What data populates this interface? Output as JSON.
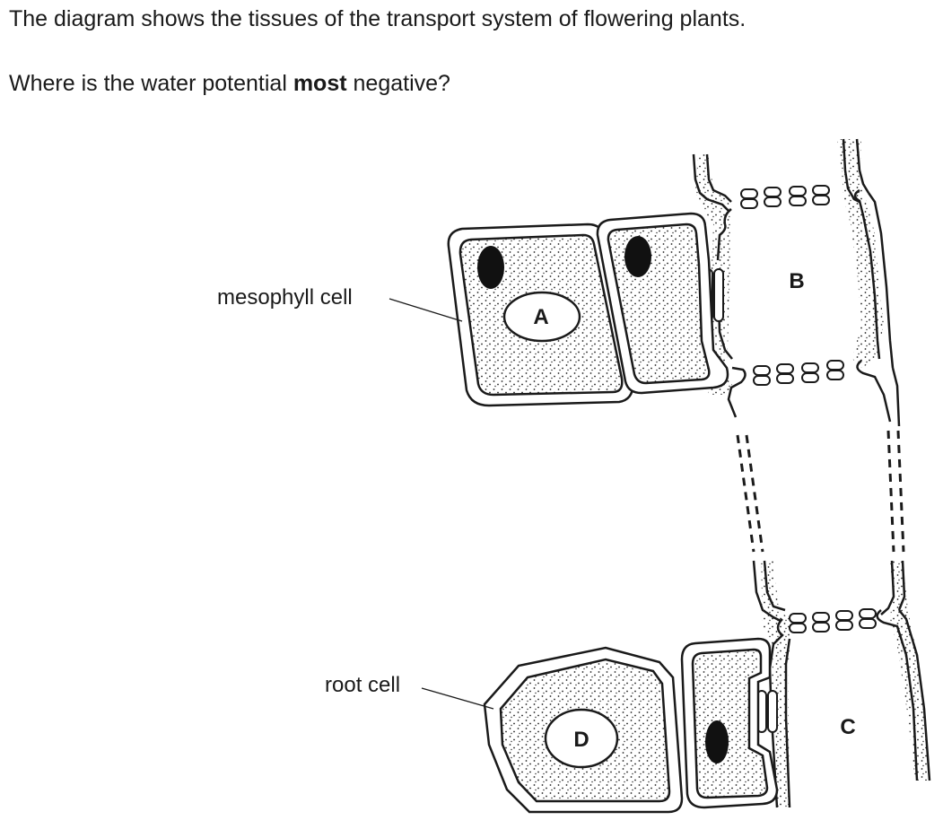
{
  "question": {
    "line1": "The diagram shows the tissues of the transport system of flowering plants.",
    "line2_before": "Where is the water potential ",
    "line2_bold": "most",
    "line2_after": " negative?"
  },
  "diagram": {
    "labels": {
      "mesophyll": "mesophyll cell",
      "root": "root cell"
    },
    "letters": {
      "a": "A",
      "b": "B",
      "c": "C",
      "d": "D"
    }
  }
}
